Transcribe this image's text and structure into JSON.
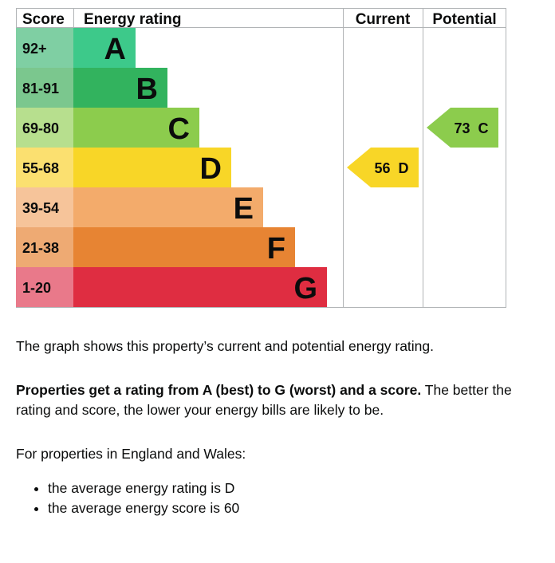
{
  "chart_data": {
    "type": "table",
    "headers": {
      "score": "Score",
      "rating": "Energy rating",
      "current": "Current",
      "potential": "Potential"
    },
    "bands": [
      {
        "score": "92+",
        "letter": "A",
        "color": "#3dc98a",
        "score_color": "#7fcfa3"
      },
      {
        "score": "81-91",
        "letter": "B",
        "color": "#32b35e",
        "score_color": "#7bc78e"
      },
      {
        "score": "69-80",
        "letter": "C",
        "color": "#8ccc4d",
        "score_color": "#b7df8e"
      },
      {
        "score": "55-68",
        "letter": "D",
        "color": "#f8d627",
        "score_color": "#fbe070"
      },
      {
        "score": "39-54",
        "letter": "E",
        "color": "#f3ab6b",
        "score_color": "#f6c49a"
      },
      {
        "score": "21-38",
        "letter": "F",
        "color": "#e78433",
        "score_color": "#eeaa73"
      },
      {
        "score": "1-20",
        "letter": "G",
        "color": "#df2d41",
        "score_color": "#e9798a"
      }
    ],
    "current": {
      "score": 56,
      "letter": "D",
      "label": "56  D",
      "color": "#f8d627"
    },
    "potential": {
      "score": 73,
      "letter": "C",
      "label": "73  C",
      "color": "#8ccc4d"
    }
  },
  "text": {
    "intro": "The graph shows this property’s current and potential energy rating.",
    "rating_bold": "Properties get a rating from A (best) to G (worst) and a score.",
    "rating_rest": " The better the rating and score, the lower your energy bills are likely to be.",
    "region_intro": "For properties in England and Wales:",
    "bullets": [
      "the average energy rating is D",
      "the average energy score is 60"
    ]
  }
}
